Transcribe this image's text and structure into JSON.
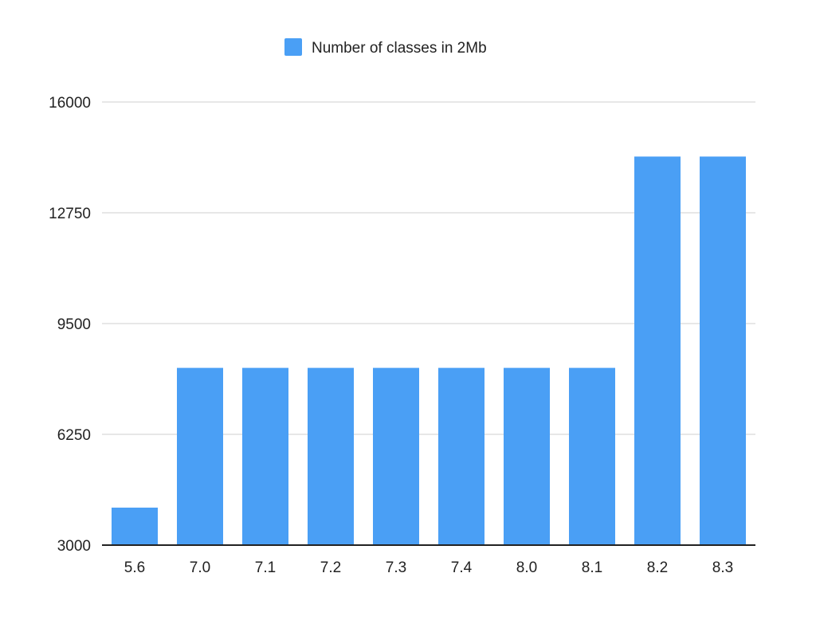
{
  "chart_data": {
    "type": "bar",
    "categories": [
      "5.6",
      "7.0",
      "7.1",
      "7.2",
      "7.3",
      "7.4",
      "8.0",
      "8.1",
      "8.2",
      "8.3"
    ],
    "series": [
      {
        "name": "Number of classes in 2Mb",
        "values": [
          4100,
          8200,
          8200,
          8200,
          8200,
          8200,
          8200,
          8200,
          14400,
          14400
        ],
        "color": "#4a9ff5"
      }
    ],
    "yticks": [
      "3000",
      "6250",
      "9500",
      "12750",
      "16000"
    ],
    "ylim": [
      3000,
      16000
    ],
    "grid": true,
    "legend_position": "top-center",
    "title": "",
    "xlabel": "",
    "ylabel": ""
  }
}
